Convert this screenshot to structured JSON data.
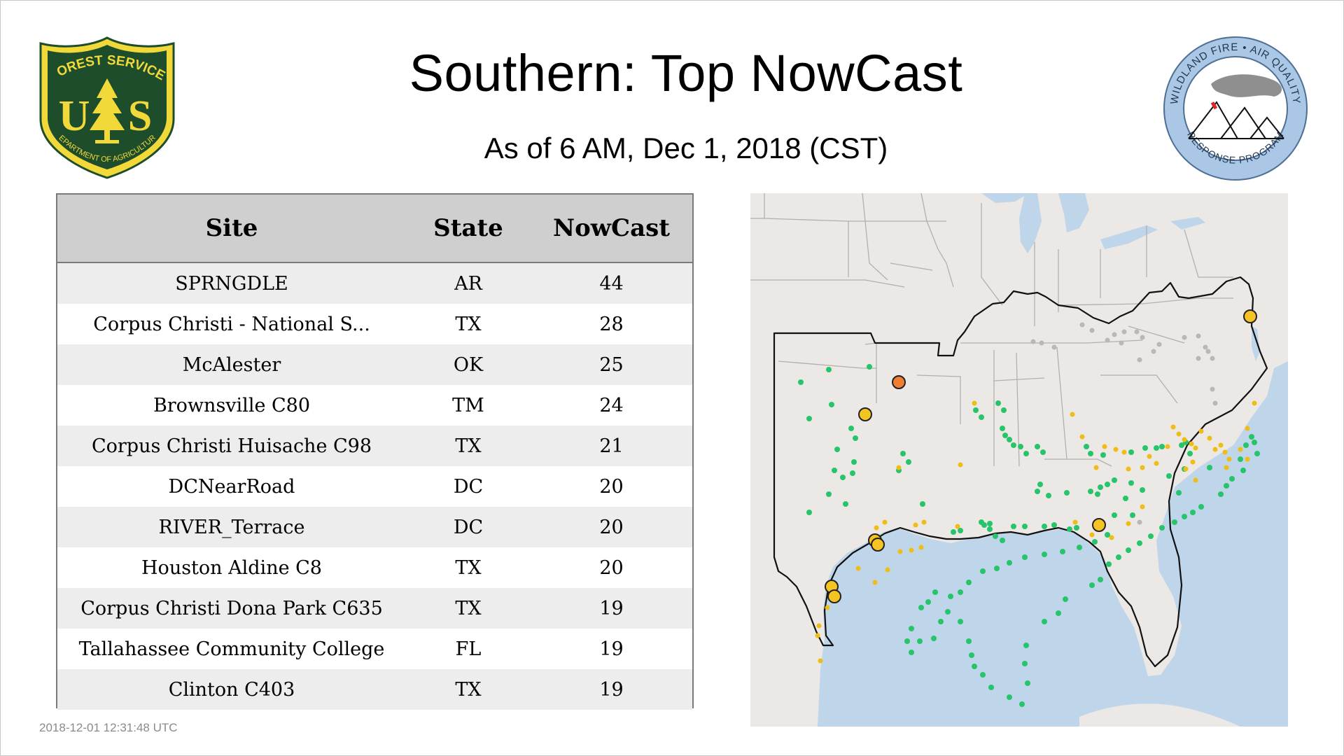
{
  "page": {
    "title": "Southern: Top NowCast",
    "subtitle": "As of  6 AM, Dec  1, 2018 (CST)",
    "timestamp": "2018-12-01 12:31:48 UTC"
  },
  "logos": {
    "usfs": {
      "top_text": "FOREST SERVICE",
      "left_letter": "U",
      "right_letter": "S",
      "bottom_text": "DEPARTMENT OF AGRICULTURE",
      "colors": {
        "green": "#1e4d2b",
        "gold": "#f2d93a"
      }
    },
    "wfaq": {
      "top_text": "WILDLAND FIRE • AIR QUALITY",
      "bottom_text": "RESPONSE PROGRAM",
      "colors": {
        "ring": "#aac8e6",
        "text": "#1f3550"
      }
    }
  },
  "table": {
    "headers": {
      "site": "Site",
      "state": "State",
      "nowcast": "NowCast"
    },
    "rows": [
      {
        "site": "SPRNGDLE",
        "state": "AR",
        "nowcast": "44"
      },
      {
        "site": "Corpus Christi - National S...",
        "state": "TX",
        "nowcast": "28"
      },
      {
        "site": "McAlester",
        "state": "OK",
        "nowcast": "25"
      },
      {
        "site": "Brownsville C80",
        "state": "TM",
        "nowcast": "24"
      },
      {
        "site": "Corpus Christi Huisache C98",
        "state": "TX",
        "nowcast": "21"
      },
      {
        "site": "DCNearRoad",
        "state": "DC",
        "nowcast": "20"
      },
      {
        "site": "RIVER_Terrace",
        "state": "DC",
        "nowcast": "20"
      },
      {
        "site": "Houston Aldine C8",
        "state": "TX",
        "nowcast": "20"
      },
      {
        "site": "Corpus Christi Dona Park C635",
        "state": "TX",
        "nowcast": "19"
      },
      {
        "site": "Tallahassee Community College",
        "state": "FL",
        "nowcast": "19"
      },
      {
        "site": "Clinton C403",
        "state": "TX",
        "nowcast": "19"
      }
    ]
  },
  "map": {
    "colors": {
      "land": "#ece8e6",
      "water": "#bfd5ea",
      "state_border": "#b0b0b0",
      "region_outline": "#111111",
      "good": "#27c46b",
      "moderate_small": "#f0bd14",
      "moderate_large": "#f5c324",
      "usg": "#ef7d32",
      "no_data": "#b8b8b8"
    }
  }
}
